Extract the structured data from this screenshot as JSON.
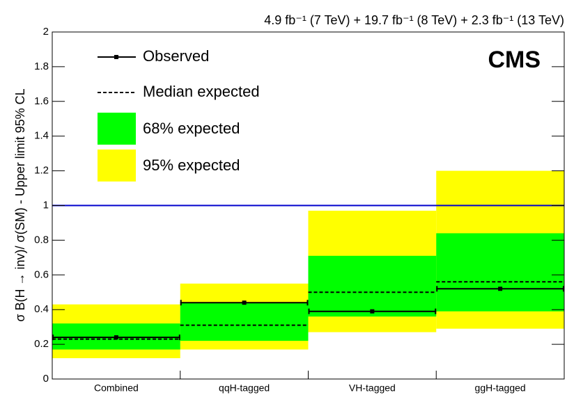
{
  "chart_data": {
    "type": "limit",
    "title": "4.9 fb⁻¹ (7 TeV) + 19.7 fb⁻¹ (8 TeV) + 2.3 fb⁻¹ (13 TeV)",
    "label": "CMS",
    "y_label": "σ B(H → inv)/ σ(SM) - Upper limit 95% CL",
    "categories": [
      "Combined",
      "qqH-tagged",
      "VH-tagged",
      "ggH-tagged"
    ],
    "band_95": {
      "name": "95% expected",
      "color": "#ffff00",
      "low": [
        0.12,
        0.17,
        0.27,
        0.29
      ],
      "high": [
        0.43,
        0.55,
        0.97,
        1.2
      ]
    },
    "band_68": {
      "name": "68% expected",
      "color": "#00ff00",
      "low": [
        0.17,
        0.22,
        0.36,
        0.39
      ],
      "high": [
        0.32,
        0.44,
        0.71,
        0.84
      ]
    },
    "expected": {
      "name": "Median expected",
      "color": "#000000",
      "values": [
        0.23,
        0.31,
        0.5,
        0.56
      ]
    },
    "observed": {
      "name": "Observed",
      "color": "#000000",
      "values": [
        0.24,
        0.44,
        0.39,
        0.52
      ]
    },
    "reference_line": {
      "value": 1,
      "color": "#0000cc"
    },
    "ylim": [
      0,
      2
    ],
    "yticks": [
      0,
      0.2,
      0.4,
      0.6,
      0.8,
      1,
      1.2,
      1.4,
      1.6,
      1.8,
      2
    ]
  }
}
